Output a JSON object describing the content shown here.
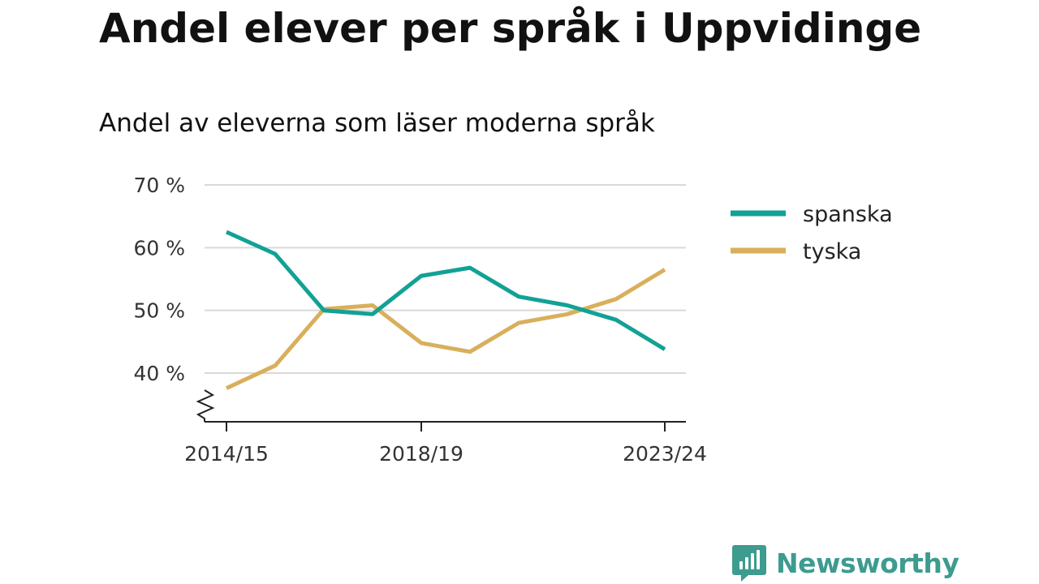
{
  "title": "Andel elever per språk i Uppvidinge",
  "subtitle": "Andel av eleverna som läser moderna språk",
  "brand": {
    "name": "Newsworthy",
    "logo_icon": "bar-chart-speech-bubble-icon",
    "color": "#3d9b8f"
  },
  "chart_data": {
    "type": "line",
    "title": "Andel elever per språk i Uppvidinge",
    "subtitle": "Andel av eleverna som läser moderna språk",
    "x": [
      "2014/15",
      "2015/16",
      "2016/17",
      "2017/18",
      "2018/19",
      "2019/20",
      "2020/21",
      "2021/22",
      "2022/23",
      "2023/24"
    ],
    "x_tick_labels": [
      "2014/15",
      "2018/19",
      "2023/24"
    ],
    "y_ticks": [
      40,
      50,
      60,
      70
    ],
    "y_tick_labels": [
      "40 %",
      "50 %",
      "60 %",
      "70 %"
    ],
    "ylim": [
      33,
      70
    ],
    "y_axis_broken": true,
    "grid": true,
    "legend_position": "right",
    "series": [
      {
        "name": "spanska",
        "color": "#12a195",
        "values": [
          62.5,
          59.0,
          50.0,
          49.4,
          55.5,
          56.8,
          52.2,
          50.8,
          48.5,
          43.8
        ]
      },
      {
        "name": "tyska",
        "color": "#d9af5c",
        "values": [
          37.6,
          41.2,
          50.2,
          50.8,
          44.8,
          43.4,
          48.0,
          49.4,
          51.8,
          56.5
        ]
      }
    ]
  }
}
